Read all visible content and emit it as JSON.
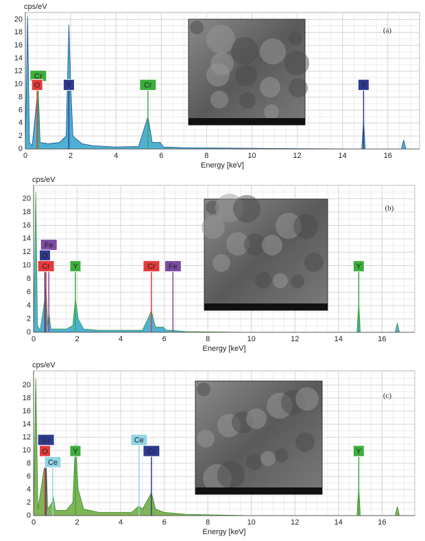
{
  "chart_data": [
    {
      "type": "area",
      "panel_label": "(a)",
      "ylabel": "cps/eV",
      "xlabel": "Energy [keV]",
      "color": "#2fa3cc",
      "line_color": "#1b4f8a",
      "grid": true,
      "xlim": [
        0,
        17.4
      ],
      "ylim": [
        0,
        21.1
      ],
      "xticks": [
        0,
        2,
        4,
        6,
        8,
        10,
        12,
        14,
        16
      ],
      "yticks": [
        0,
        2,
        4,
        6,
        8,
        10,
        12,
        14,
        16,
        18,
        20
      ],
      "x": [
        0,
        0.1,
        0.18,
        0.3,
        0.52,
        0.57,
        0.65,
        1,
        1.5,
        1.8,
        1.92,
        2.0,
        2.1,
        2.5,
        3,
        4,
        5,
        5.41,
        5.6,
        5.95,
        6.1,
        7,
        10,
        14.85,
        14.93,
        15.0,
        16.6,
        16.7,
        16.8,
        17.4
      ],
      "values": [
        0,
        20.5,
        1,
        0.5,
        8,
        9,
        1,
        0.8,
        1,
        2,
        19.2,
        10,
        2,
        0.8,
        0.5,
        0.3,
        0.4,
        5,
        1,
        1,
        0.3,
        0.2,
        0.1,
        0,
        4.5,
        0,
        0,
        1.4,
        0,
        0
      ],
      "annotations": [
        {
          "text": "Cr",
          "x": 0.57,
          "color": "#3cae3c"
        },
        {
          "text": "O",
          "x": 0.52,
          "color": "#e43a3a"
        },
        {
          "text": "Y",
          "x": 1.92,
          "color": "#2f3a8f"
        },
        {
          "text": "Cr",
          "x": 5.41,
          "color": "#3cae3c"
        },
        {
          "text": "Y",
          "x": 14.93,
          "color": "#2f3a8f"
        }
      ]
    },
    {
      "type": "area",
      "panel_label": "(b)",
      "ylabel": "cps/eV",
      "xlabel": "Energy [keV]",
      "color": "#2fa3cc",
      "line_color": "#3a9a3a",
      "grid": true,
      "xlim": [
        0,
        17.5
      ],
      "ylim": [
        0,
        22
      ],
      "xticks": [
        0,
        2,
        4,
        6,
        8,
        10,
        12,
        14,
        16
      ],
      "yticks": [
        0,
        2,
        4,
        6,
        8,
        10,
        12,
        14,
        16,
        18,
        20
      ],
      "x": [
        0,
        0.1,
        0.18,
        0.3,
        0.52,
        0.57,
        0.65,
        0.7,
        0.8,
        1.5,
        1.8,
        1.92,
        2.05,
        2.3,
        3,
        5,
        5.41,
        5.6,
        5.95,
        6.1,
        6.4,
        7,
        10,
        14.85,
        14.93,
        15.0,
        16.6,
        16.7,
        16.8,
        17.5
      ],
      "values": [
        0,
        21,
        1,
        0.3,
        5,
        7,
        1,
        3,
        0.5,
        0.5,
        1,
        5,
        2,
        0.5,
        0.3,
        0.3,
        3.2,
        0.8,
        0.8,
        0.3,
        0.3,
        0.1,
        0,
        0,
        4.5,
        0,
        0,
        1.4,
        0,
        0
      ],
      "annotations": [
        {
          "text": "Fe",
          "x": 0.7,
          "color": "#7d4ba3"
        },
        {
          "text": "O",
          "x": 0.52,
          "color": "#2f3a8f"
        },
        {
          "text": "Cr",
          "x": 0.57,
          "color": "#e43a3a"
        },
        {
          "text": "Y",
          "x": 1.92,
          "color": "#3cae3c"
        },
        {
          "text": "Cr",
          "x": 5.41,
          "color": "#e43a3a"
        },
        {
          "text": "Fe",
          "x": 6.4,
          "color": "#7d4ba3"
        },
        {
          "text": "Y",
          "x": 14.93,
          "color": "#3cae3c"
        }
      ]
    },
    {
      "type": "area",
      "panel_label": "(c)",
      "ylabel": "cps/eV",
      "xlabel": "Energy [keV]",
      "color": "#6aa83a",
      "line_color": "#3a8a2a",
      "grid": true,
      "xlim": [
        0,
        17.5
      ],
      "ylim": [
        0,
        22.2
      ],
      "xticks": [
        0,
        2,
        4,
        6,
        8,
        10,
        12,
        14,
        16
      ],
      "yticks": [
        0,
        2,
        4,
        6,
        8,
        10,
        12,
        14,
        16,
        18,
        20
      ],
      "x": [
        0,
        0.1,
        0.2,
        0.52,
        0.57,
        0.65,
        0.85,
        0.9,
        1,
        1.5,
        1.8,
        1.92,
        2.05,
        2.3,
        3,
        4.5,
        4.84,
        5.0,
        5.41,
        5.6,
        6,
        7,
        10,
        14.85,
        14.93,
        15.0,
        16.6,
        16.7,
        16.8,
        17.5
      ],
      "values": [
        0,
        21,
        1,
        8,
        9,
        1,
        2,
        3,
        0.8,
        0.8,
        2,
        11,
        4,
        1,
        0.5,
        0.5,
        1.5,
        1,
        3.5,
        1,
        0.5,
        0.2,
        0,
        0,
        4.5,
        0,
        0,
        1.4,
        0,
        0
      ],
      "annotations": [
        {
          "text": "Cr",
          "x": 0.57,
          "color": "#2f3a8f"
        },
        {
          "text": "O",
          "x": 0.52,
          "color": "#e43a3a"
        },
        {
          "text": "Ce",
          "x": 0.88,
          "color": "#8fd6e6"
        },
        {
          "text": "Y",
          "x": 1.92,
          "color": "#3cae3c"
        },
        {
          "text": "Ce",
          "x": 4.84,
          "color": "#8fd6e6"
        },
        {
          "text": "Cr",
          "x": 5.41,
          "color": "#2f3a8f"
        },
        {
          "text": "Y",
          "x": 14.93,
          "color": "#3cae3c"
        }
      ]
    }
  ]
}
